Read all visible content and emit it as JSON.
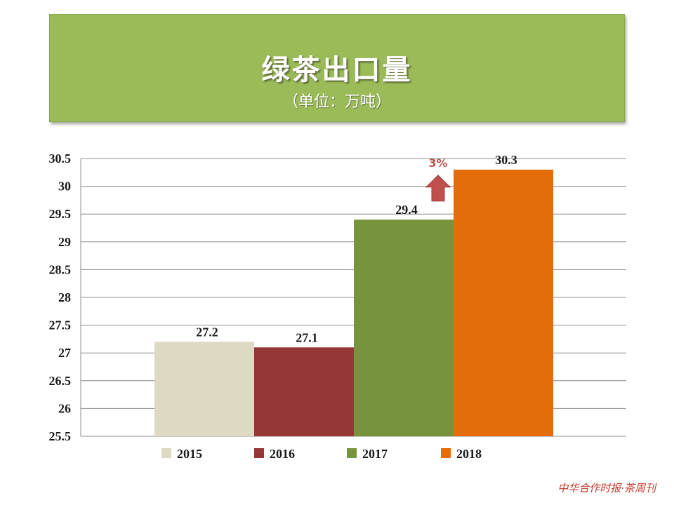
{
  "header": {
    "title": "绿茶出口量",
    "subtitle": "（单位：万吨）"
  },
  "chart_data": {
    "type": "bar",
    "title": "绿茶出口量",
    "subtitle": "（单位：万吨）",
    "ylim": [
      25.5,
      30.5
    ],
    "ytick_step": 0.5,
    "ytick_labels": [
      "25.5",
      "26",
      "26.5",
      "27",
      "27.5",
      "28",
      "28.5",
      "29",
      "29.5",
      "30",
      "30.5"
    ],
    "grid": true,
    "legend_position": "bottom",
    "series": [
      {
        "name": "2015",
        "value": 27.2,
        "label": "27.2",
        "color": "#ddd9c3"
      },
      {
        "name": "2016",
        "value": 27.1,
        "label": "27.1",
        "color": "#953735"
      },
      {
        "name": "2017",
        "value": 29.4,
        "label": "29.4",
        "color": "#77933c"
      },
      {
        "name": "2018",
        "value": 30.3,
        "label": "30.3",
        "color": "#e46c0a"
      }
    ],
    "annotation": {
      "text": "3%",
      "arrow": "up",
      "color": "#c0504d"
    }
  },
  "footer": {
    "watermark": "中华合作时报·茶周刊"
  }
}
